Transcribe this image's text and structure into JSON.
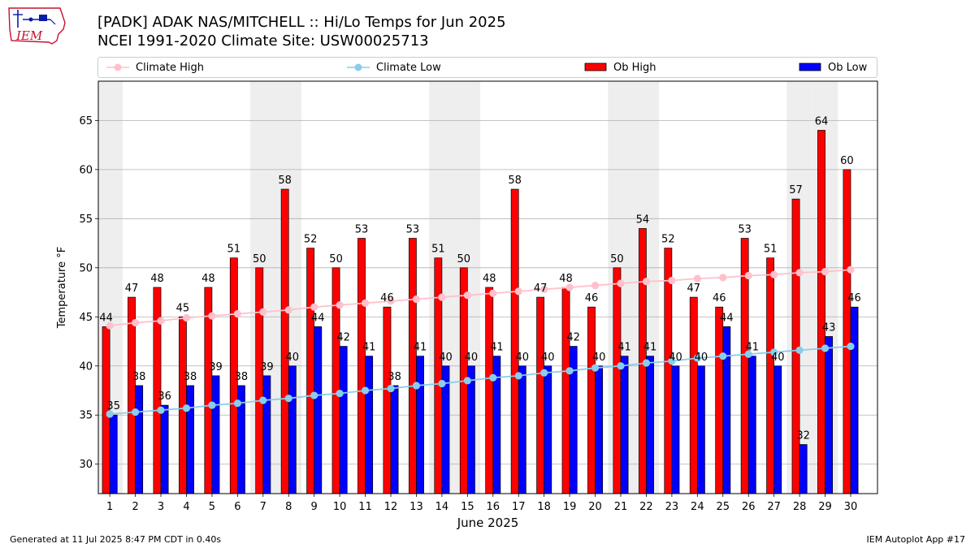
{
  "header": {
    "title_line1": "[PADK] ADAK NAS/MITCHELL :: Hi/Lo Temps for Jun 2025",
    "title_line2": "NCEI 1991-2020 Climate Site: USW00025713"
  },
  "logo": {
    "text": "IEM"
  },
  "legend": {
    "items": [
      {
        "label": "Climate High",
        "color": "#ffc0cb",
        "kind": "line"
      },
      {
        "label": "Climate Low",
        "color": "#87ceeb",
        "kind": "line"
      },
      {
        "label": "Ob High",
        "color": "#ff0000",
        "kind": "bar"
      },
      {
        "label": "Ob Low",
        "color": "#0000ff",
        "kind": "bar"
      }
    ]
  },
  "footer": {
    "left": "Generated at 11 Jul 2025 8:47 PM CDT in 0.40s",
    "right": "IEM Autoplot App #17"
  },
  "chart_data": {
    "type": "bar",
    "xlabel": "June 2025",
    "ylabel": "Temperature °F",
    "ylim": [
      27,
      69
    ],
    "yticks": [
      30,
      35,
      40,
      45,
      50,
      55,
      60,
      65
    ],
    "grid": true,
    "legend_position": "top",
    "categories": [
      "1",
      "2",
      "3",
      "4",
      "5",
      "6",
      "7",
      "8",
      "9",
      "10",
      "11",
      "12",
      "13",
      "14",
      "15",
      "16",
      "17",
      "18",
      "19",
      "20",
      "21",
      "22",
      "23",
      "24",
      "25",
      "26",
      "27",
      "28",
      "29",
      "30"
    ],
    "weekend_shading_days": [
      1,
      7,
      8,
      14,
      15,
      21,
      22,
      28,
      29
    ],
    "series": [
      {
        "name": "Ob High",
        "color": "#ff0000",
        "type": "bar",
        "values": [
          44,
          47,
          48,
          45,
          48,
          51,
          50,
          58,
          52,
          50,
          53,
          46,
          53,
          51,
          50,
          48,
          58,
          47,
          48,
          46,
          50,
          54,
          52,
          47,
          46,
          53,
          51,
          57,
          64,
          60
        ]
      },
      {
        "name": "Ob Low",
        "color": "#0000ff",
        "type": "bar",
        "values": [
          35,
          38,
          36,
          38,
          39,
          38,
          39,
          40,
          44,
          42,
          41,
          38,
          41,
          40,
          40,
          41,
          40,
          40,
          42,
          40,
          41,
          41,
          40,
          40,
          44,
          41,
          40,
          32,
          43,
          46
        ]
      },
      {
        "name": "Climate High",
        "color": "#ffc0cb",
        "type": "line",
        "values": [
          44.1,
          44.4,
          44.6,
          44.9,
          45.1,
          45.3,
          45.5,
          45.7,
          46.0,
          46.2,
          46.4,
          46.6,
          46.8,
          47.0,
          47.2,
          47.4,
          47.6,
          47.8,
          48.0,
          48.2,
          48.4,
          48.6,
          48.7,
          48.9,
          49.0,
          49.2,
          49.3,
          49.5,
          49.6,
          49.8
        ]
      },
      {
        "name": "Climate Low",
        "color": "#87ceeb",
        "type": "line",
        "values": [
          35.1,
          35.3,
          35.5,
          35.7,
          36.0,
          36.2,
          36.5,
          36.7,
          37.0,
          37.2,
          37.5,
          37.7,
          38.0,
          38.2,
          38.5,
          38.8,
          39.0,
          39.3,
          39.5,
          39.8,
          40.0,
          40.3,
          40.5,
          40.8,
          41.0,
          41.2,
          41.4,
          41.6,
          41.8,
          42.0
        ]
      }
    ]
  }
}
